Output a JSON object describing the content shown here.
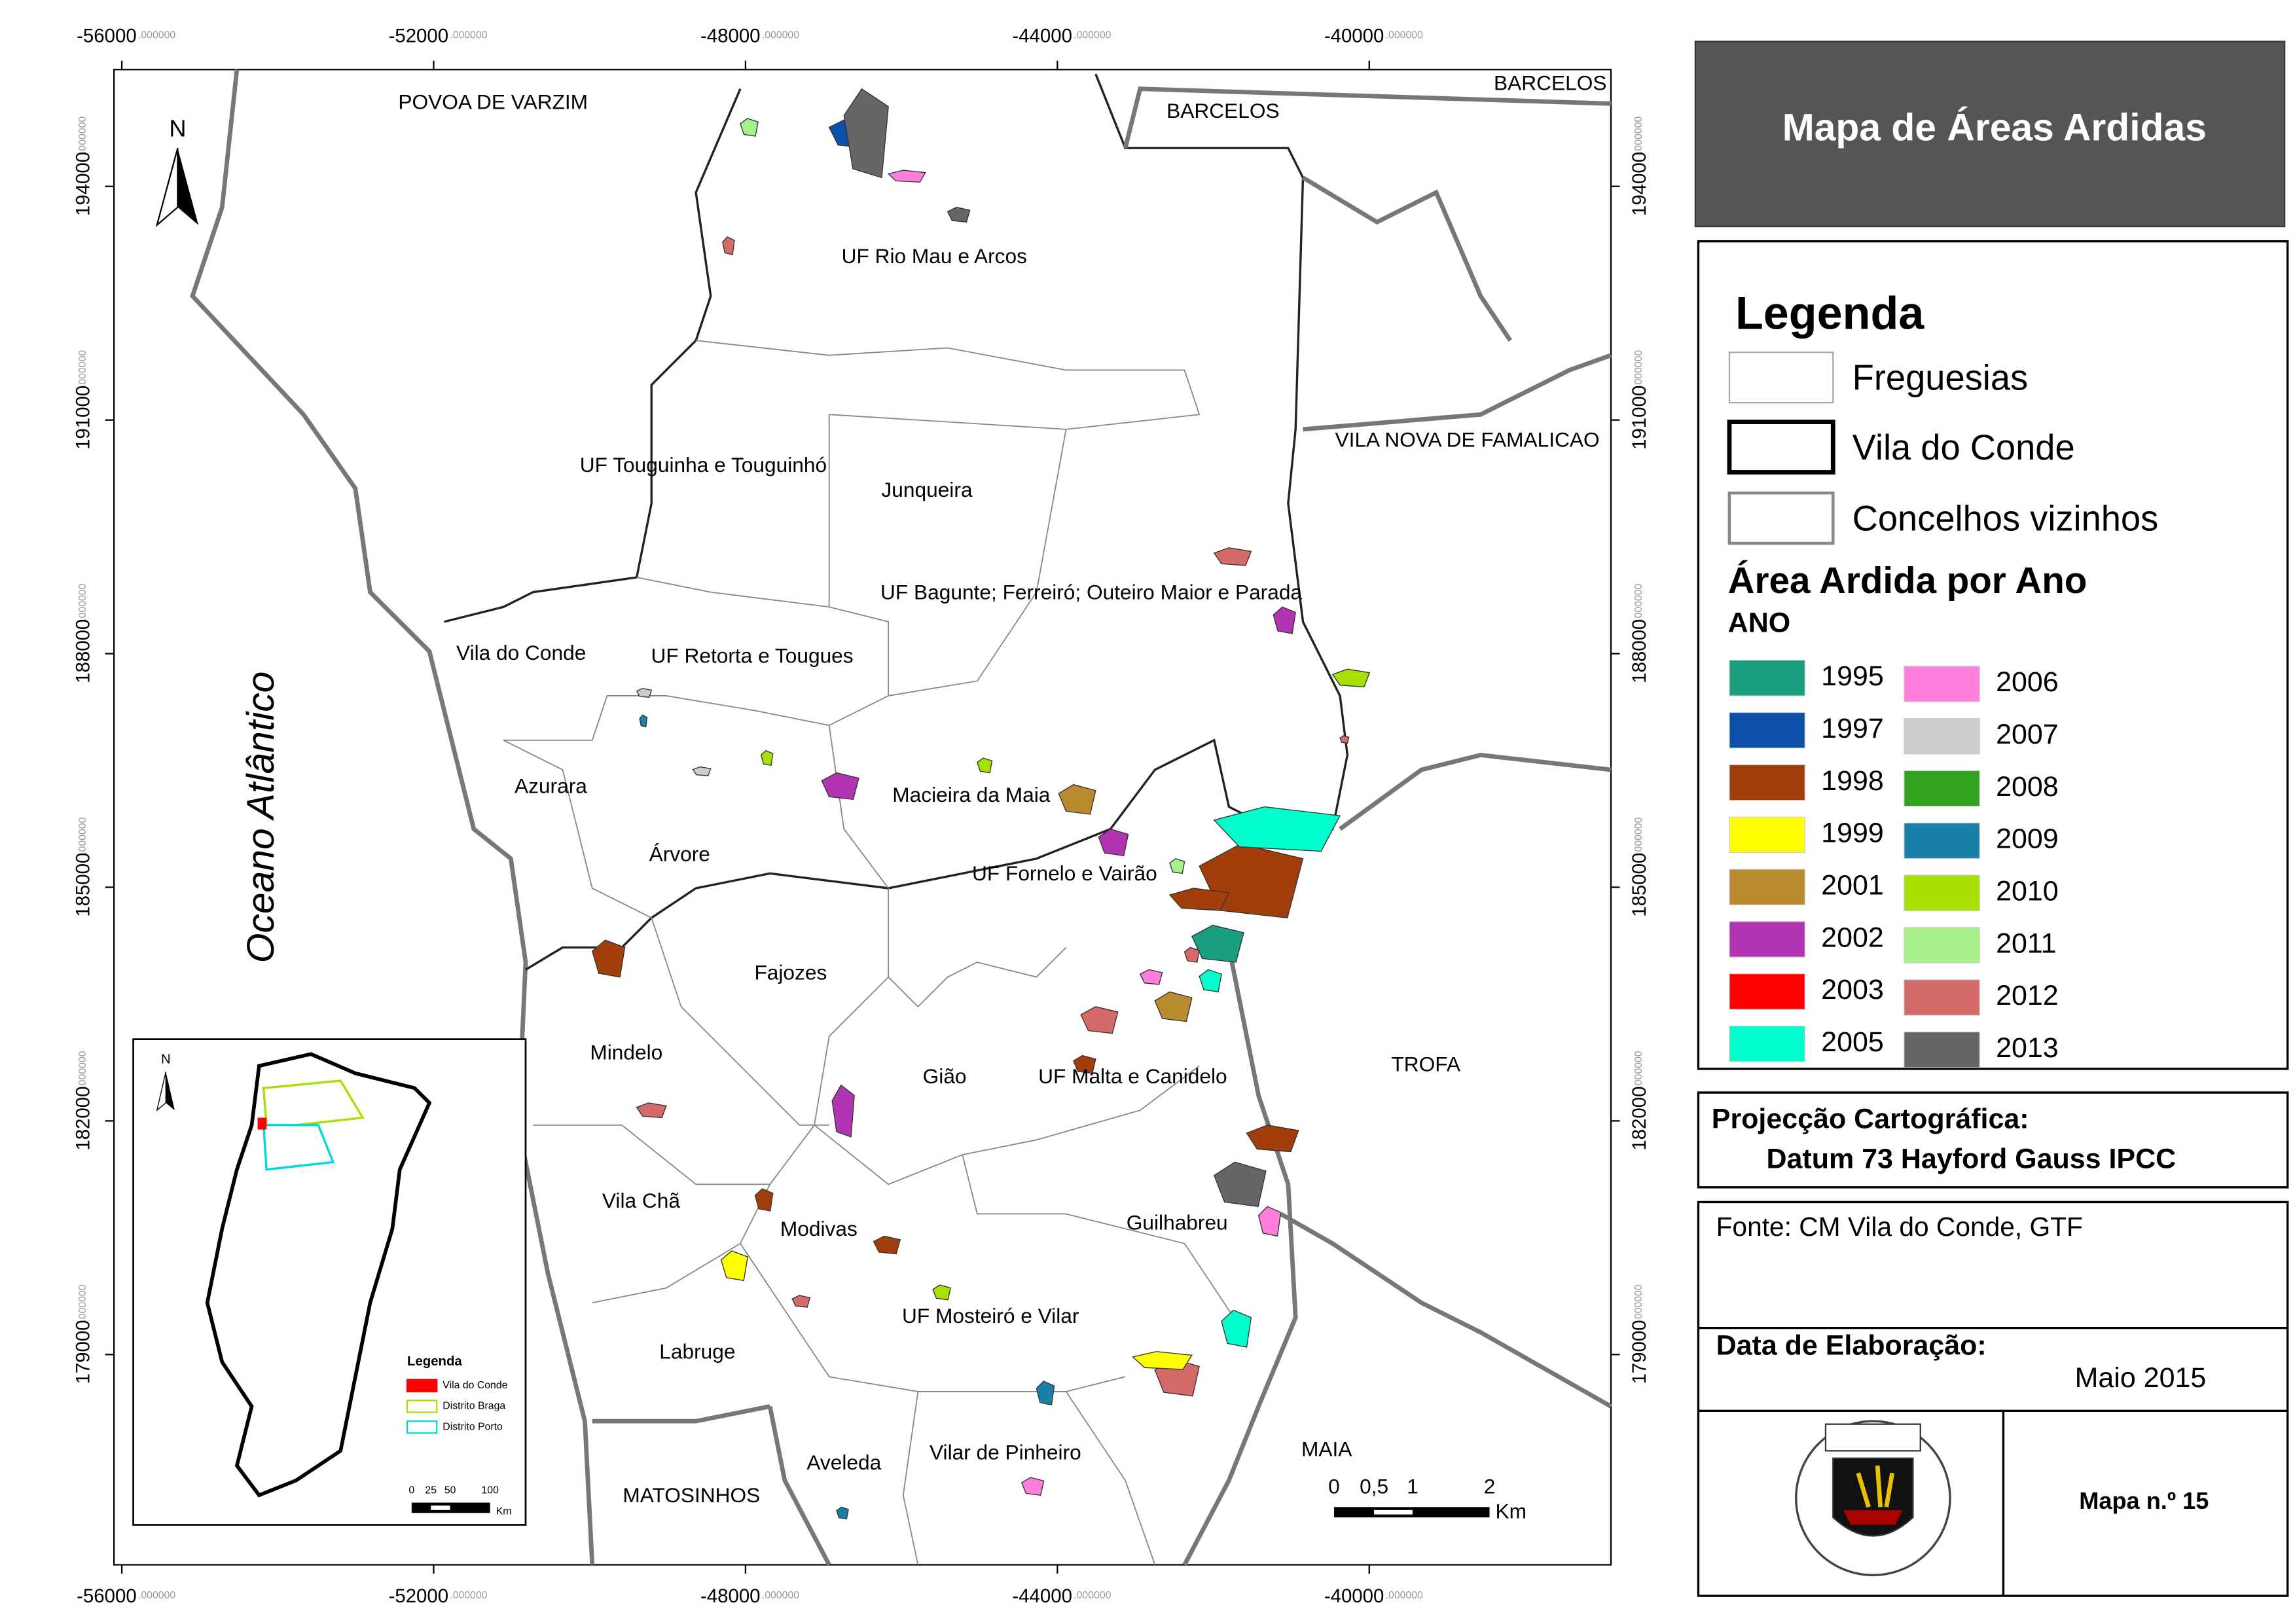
{
  "title": "Mapa de Áreas Ardidas",
  "map": {
    "xlim": [
      -56100,
      -36900
    ],
    "ylim": [
      176300,
      195500
    ],
    "xticks": [
      -56000,
      -52000,
      -48000,
      -44000,
      -40000
    ],
    "yticks": [
      194000,
      191000,
      188000,
      185000,
      182000,
      179000
    ],
    "tick_suffix": ".000000",
    "north": "N",
    "parishes": [
      "UF Rio Mau e Arcos",
      "UF Touguinha e Touguinhó",
      "Junqueira",
      "UF Bagunte; Ferreiró; Outeiro Maior e Parada",
      "Vila do Conde",
      "UF Retorta e Tougues",
      "Azurara",
      "Macieira da Maia",
      "Árvore",
      "UF Fornelo e Vairão",
      "Fajozes",
      "Mindelo",
      "Gião",
      "UF Malta e Canidelo",
      "Vila Chã",
      "Modivas",
      "Guilhabreu",
      "UF Mosteiró e Vilar",
      "Labruge",
      "Aveleda",
      "Vilar de Pinheiro"
    ],
    "neighbours": [
      "POVOA DE VARZIM",
      "BARCELOS",
      "BARCELOS",
      "VILA NOVA DE FAMALICAO",
      "TROFA",
      "MAIA",
      "MATOSINHOS"
    ],
    "ocean": "Oceano Atlântico",
    "scale": {
      "labels": [
        "0",
        "0,5",
        "1",
        "2"
      ],
      "unit": "Km"
    }
  },
  "inset": {
    "north": "N",
    "legend_title": "Legenda",
    "items": [
      {
        "label": "Vila do Conde",
        "color": "#ff0000"
      },
      {
        "label": "Distrito Braga",
        "color": "#a8e000"
      },
      {
        "label": "Distrito Porto",
        "color": "#00d9d9"
      }
    ],
    "scale": {
      "labels": [
        "0",
        "25",
        "50",
        "100"
      ],
      "unit": "Km"
    }
  },
  "legend": {
    "title": "Legenda",
    "layers": [
      "Freguesias",
      "Vila do Conde",
      "Concelhos vizinhos"
    ],
    "subtitle": "Área Ardida por Ano",
    "field": "ANO",
    "years": [
      {
        "label": "1995",
        "color": "#1a9e7f"
      },
      {
        "label": "1997",
        "color": "#0b4fa8"
      },
      {
        "label": "1998",
        "color": "#a23e0c"
      },
      {
        "label": "1999",
        "color": "#ffff00"
      },
      {
        "label": "2001",
        "color": "#b98b2f"
      },
      {
        "label": "2002",
        "color": "#b334b3"
      },
      {
        "label": "2003",
        "color": "#ff0000"
      },
      {
        "label": "2005",
        "color": "#00ffcc"
      },
      {
        "label": "2006",
        "color": "#ff7fdd"
      },
      {
        "label": "2007",
        "color": "#cccccc"
      },
      {
        "label": "2008",
        "color": "#33a31f"
      },
      {
        "label": "2009",
        "color": "#1b80a8"
      },
      {
        "label": "2010",
        "color": "#a8e000"
      },
      {
        "label": "2011",
        "color": "#a8f08c"
      },
      {
        "label": "2012",
        "color": "#d46a6a"
      },
      {
        "label": "2013",
        "color": "#666666"
      }
    ]
  },
  "projection": {
    "title": "Projecção Cartográfica:",
    "value": "Datum 73 Hayford Gauss IPCC"
  },
  "source": "Fonte: CM Vila do Conde, GTF",
  "date": {
    "title": "Data de Elaboração:",
    "value": "Maio 2015"
  },
  "map_number": "Mapa n.º 15"
}
